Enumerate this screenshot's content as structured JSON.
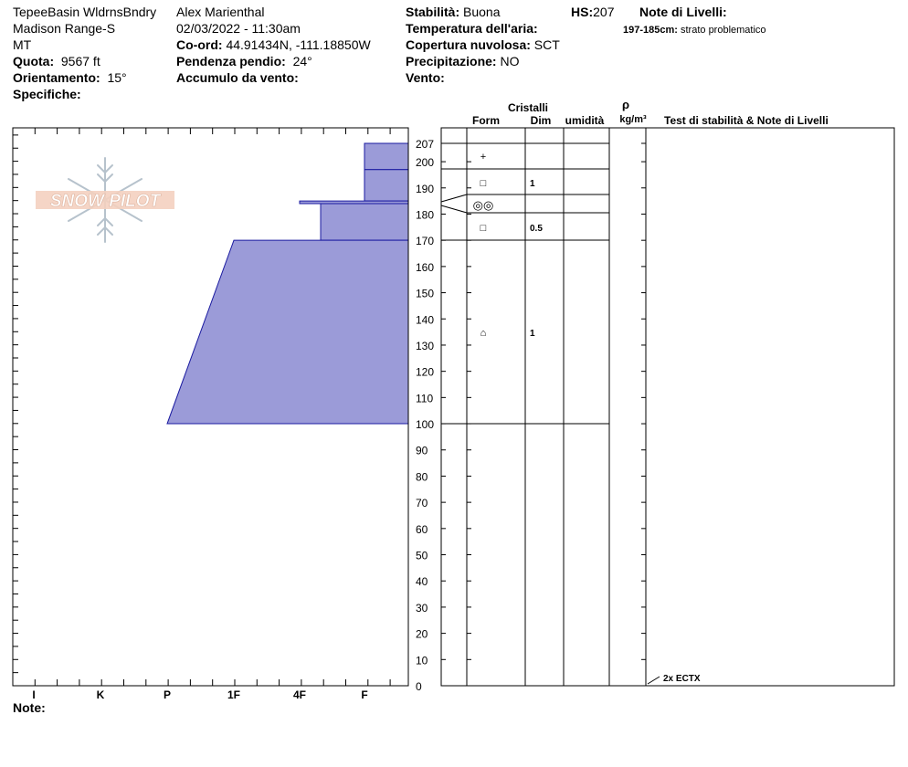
{
  "header": {
    "location_line1": "TepeeBasin WldrnsBndry",
    "location_line2": "Madison Range-S",
    "location_line3": "MT",
    "elevation_label": "Quota:",
    "elevation_value": "9567 ft",
    "aspect_label": "Orientamento:",
    "aspect_value": "15°",
    "specifics_label": "Specifiche:",
    "observer": "Alex Marienthal",
    "datetime": "02/03/2022 - 11:30am",
    "coord_label": "Co-ord:",
    "coord_value": "44.91434N, -111.18850W",
    "slope_label": "Pendenza pendio:",
    "slope_value": "24°",
    "wind_loading_label": "Accumulo da vento:",
    "stability_label": "Stabilità:",
    "stability_value": "Buona",
    "air_temp_label": "Temperatura dell'aria:",
    "cloud_label": "Copertura nuvolosa:",
    "cloud_value": "SCT",
    "precip_label": "Precipitazione:",
    "precip_value": "NO",
    "wind_label": "Vento:",
    "hs_label": "HS:",
    "hs_value": "207",
    "layer_notes_label": "Note di Livelli:",
    "layer_note_range": "197-185cm:",
    "layer_note_text": "strato problematico",
    "notes_label": "Note:"
  },
  "logo": {
    "text": "SNOW PILOT"
  },
  "columns": {
    "crystals": "Cristalli",
    "form": "Form",
    "size": "Dim",
    "moisture": "umidità",
    "density_symbol": "ρ",
    "density_unit": "kg/m³",
    "tests": "Test di stabilità & Note di Livelli"
  },
  "chart_data": {
    "type": "area",
    "xlabel": "",
    "ylabel": "",
    "ylim": [
      0,
      207
    ],
    "y_ticks": [
      207,
      200,
      190,
      180,
      170,
      160,
      150,
      140,
      130,
      120,
      110,
      100,
      90,
      80,
      70,
      60,
      50,
      40,
      30,
      20,
      10,
      0
    ],
    "hardness_categories": [
      "I",
      "K",
      "P",
      "1F",
      "4F",
      "F"
    ],
    "color": "#9b9bd8",
    "hardness_profile": [
      {
        "top": 207,
        "bottom": 197,
        "hardness_top": "F",
        "hardness_bottom": "F"
      },
      {
        "top": 197,
        "bottom": 185,
        "hardness_top": "F",
        "hardness_bottom": "F"
      },
      {
        "top": 185,
        "bottom": 184,
        "hardness_top": "4F",
        "hardness_bottom": "4F"
      },
      {
        "top": 184,
        "bottom": 170,
        "hardness_top": "4F+",
        "hardness_bottom": "4F+"
      },
      {
        "top": 170,
        "bottom": 100,
        "hardness_top": "1F",
        "hardness_bottom": "P"
      }
    ],
    "layer_boundaries": [
      207,
      197,
      187,
      180,
      170,
      100,
      0
    ],
    "layers": [
      {
        "mid": 197,
        "form": "+",
        "size": ""
      },
      {
        "mid": 187,
        "form": "□",
        "size": "1"
      },
      {
        "mid": 180,
        "form": "◎◎",
        "size": ""
      },
      {
        "mid": 170,
        "form": "□",
        "size": "0.5"
      },
      {
        "mid": 100,
        "form": "⌂",
        "size": "1"
      }
    ],
    "tests": [
      {
        "depth": 0,
        "label": "2x ECTX"
      }
    ]
  }
}
